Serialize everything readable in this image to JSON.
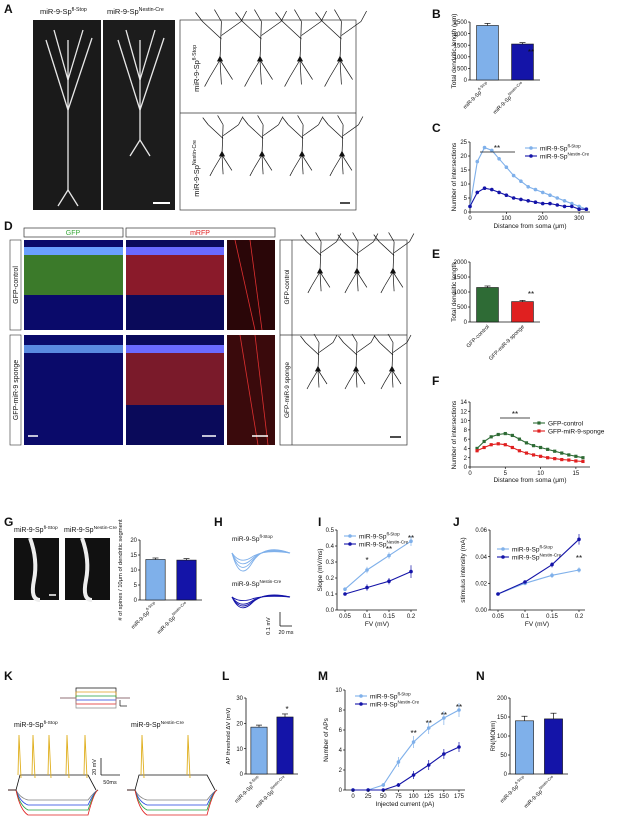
{
  "panels": {
    "A": {
      "letter": "A",
      "col1": "miR-9-Sp",
      "col1_sup": "fl-Stop",
      "col2": "miR-9-Sp",
      "col2_sup": "Nestin-Cre",
      "row1": "miR-9-Sp",
      "row1_sup": "fl-Stop",
      "row2": "miR-9-Sp",
      "row2_sup": "Nestin-Cre"
    },
    "B": {
      "letter": "B",
      "ylabel": "Total dendritic length (μm)",
      "ticks": [
        "0",
        "500",
        "1000",
        "1500",
        "2000",
        "2500"
      ],
      "star": "**",
      "categories": [
        "miR-9-Sp",
        "miR-9-Sp"
      ],
      "cat_sups": [
        "fl-Stop",
        "Nestin-Cre"
      ]
    },
    "C": {
      "letter": "C",
      "ylabel": "Number of intersections",
      "xlabel": "Distance from soma (μm)",
      "yticks": [
        "0",
        "5",
        "10",
        "15",
        "20",
        "25"
      ],
      "xticks": [
        "0",
        "100",
        "200",
        "300"
      ],
      "star": "**",
      "legend": [
        "miR-9-Sp",
        "miR-9-Sp"
      ],
      "legend_sups": [
        "fl-Stop",
        "Nestin-Cre"
      ]
    },
    "D": {
      "letter": "D",
      "gfp": "GFP",
      "mrfp": "mRFP",
      "row1": "GFP-control",
      "row2": "GFP-miR-9 sponge"
    },
    "E": {
      "letter": "E",
      "ylabel": "Total dendritic length",
      "ticks": [
        "0",
        "500",
        "1000",
        "1500",
        "2000"
      ],
      "star": "**",
      "categories": [
        "GFP-control",
        "GFP-miR-9 sponge"
      ]
    },
    "F": {
      "letter": "F",
      "ylabel": "Number of intersections",
      "xlabel": "Distance from soma (μm)",
      "yticks": [
        "0",
        "2",
        "4",
        "6",
        "8",
        "10",
        "12",
        "14"
      ],
      "xticks": [
        "0",
        "5",
        "10",
        "15"
      ],
      "star": "**",
      "legend": [
        "GFP-control",
        "GFP-miR-9-sponge"
      ]
    },
    "G": {
      "letter": "G",
      "col1": "miR-9-Sp",
      "col1_sup": "fl-Stop",
      "col2": "miR-9-Sp",
      "col2_sup": "Nestin-Cre",
      "ylabel": "# of spines / 10μm of dendritic segment",
      "ticks": [
        "0",
        "5",
        "10",
        "15",
        "20"
      ],
      "categories": [
        "miR-9-Sp",
        "miR-9-Sp"
      ],
      "cat_sups": [
        "fl-Stop",
        "Nestin-Cre"
      ]
    },
    "H": {
      "letter": "H",
      "top": "miR-9-Sp",
      "top_sup": "fl-Stop",
      "bottom": "miR-9-Sp",
      "bottom_sup": "Nestin-Cre",
      "scale_y": "0.1 mV",
      "scale_x": "20 ms"
    },
    "I": {
      "letter": "I",
      "ylabel": "Slope (mV/ms)",
      "xlabel": "FV (mV)",
      "yticks": [
        "0.0",
        "0.1",
        "0.2",
        "0.3",
        "0.4",
        "0.5"
      ],
      "xticks": [
        "0.05",
        "0.1",
        "0.15",
        "0.2"
      ],
      "legend": [
        "miR-9-Sp",
        "miR-9-Sp"
      ],
      "legend_sups": [
        "fl-Stop",
        "Nestin-Cre"
      ],
      "stars": [
        "*",
        "**",
        "**"
      ]
    },
    "J": {
      "letter": "J",
      "ylabel": "stimulus intensity (mA)",
      "xlabel": "FV (mV)",
      "yticks": [
        "0.00",
        "0.02",
        "0.04",
        "0.06"
      ],
      "xticks": [
        "0.05",
        "0.1",
        "0.15",
        "0.2"
      ],
      "legend": [
        "miR-9-Sp",
        "miR-9-Sp"
      ],
      "legend_sups": [
        "fl-Stop",
        "Nestin-Cre"
      ],
      "star": "**"
    },
    "K": {
      "letter": "K",
      "left": "miR-9-Sp",
      "left_sup": "fl-Stop",
      "right": "miR-9-Sp",
      "right_sup": "Nestin-Cre",
      "scale_y": "20 mV",
      "scale_x": "50ms"
    },
    "L": {
      "letter": "L",
      "ylabel": "AP threshold ΔV (mV)",
      "ticks": [
        "0",
        "10",
        "20",
        "30"
      ],
      "star": "*",
      "categories": [
        "miR-9-Sp",
        "miR-9-Sp"
      ],
      "cat_sups": [
        "fl-Stop",
        "Nestin-Cre"
      ]
    },
    "M": {
      "letter": "M",
      "ylabel": "Number of APs",
      "xlabel": "Injected current (pA)",
      "yticks": [
        "0",
        "2",
        "4",
        "6",
        "8",
        "10"
      ],
      "xticks": [
        "0",
        "25",
        "50",
        "75",
        "100",
        "125",
        "150",
        "175"
      ],
      "legend": [
        "miR-9-Sp",
        "miR-9-Sp"
      ],
      "legend_sups": [
        "fl-Stop",
        "Nestin-Cre"
      ],
      "stars": [
        "**",
        "**",
        "**",
        "**"
      ]
    },
    "N": {
      "letter": "N",
      "ylabel": "RN(MOhm)",
      "ticks": [
        "0",
        "50",
        "100",
        "150",
        "200"
      ],
      "categories": [
        "miR-9-Sp",
        "miR-9-Sp"
      ],
      "cat_sups": [
        "fl-Stop",
        "Nestin-Cre"
      ]
    }
  },
  "colors": {
    "light": "#7fb0ea",
    "dark": "#1414a8",
    "green": "#2e6b35",
    "red": "#e02020"
  },
  "chart_data": [
    {
      "panel": "B",
      "type": "bar",
      "categories": [
        "miR-9-Sp fl-Stop",
        "miR-9-Sp Nestin-Cre"
      ],
      "values": [
        2350,
        1550
      ],
      "errors": [
        90,
        60
      ],
      "ylim": [
        0,
        2500
      ]
    },
    {
      "panel": "C",
      "type": "line",
      "x": [
        0,
        20,
        40,
        60,
        80,
        100,
        120,
        140,
        160,
        180,
        200,
        220,
        240,
        260,
        280,
        300,
        320
      ],
      "series": [
        {
          "name": "miR-9-Sp fl-Stop",
          "values": [
            2,
            18,
            23,
            22,
            19,
            16,
            13,
            11,
            9,
            8,
            7,
            6,
            5,
            4,
            3,
            2,
            1
          ]
        },
        {
          "name": "miR-9-Sp Nestin-Cre",
          "values": [
            2,
            7,
            8.5,
            8,
            7,
            6,
            5,
            4.5,
            4,
            3.5,
            3,
            3,
            2.5,
            2,
            2,
            1,
            1
          ]
        }
      ],
      "xlim": [
        0,
        330
      ],
      "ylim": [
        0,
        25
      ]
    },
    {
      "panel": "E",
      "type": "bar",
      "categories": [
        "GFP-control",
        "GFP-miR-9 sponge"
      ],
      "values": [
        1150,
        680
      ],
      "errors": [
        50,
        40
      ],
      "ylim": [
        0,
        2000
      ]
    },
    {
      "panel": "F",
      "type": "line",
      "x": [
        1,
        2,
        3,
        4,
        5,
        6,
        7,
        8,
        9,
        10,
        11,
        12,
        13,
        14,
        15,
        16
      ],
      "series": [
        {
          "name": "GFP-control",
          "values": [
            4,
            5.5,
            6.5,
            7,
            7.2,
            6.8,
            6,
            5.2,
            4.6,
            4.2,
            3.8,
            3.4,
            3,
            2.6,
            2.3,
            2
          ]
        },
        {
          "name": "GFP-miR-9-sponge",
          "values": [
            3.5,
            4.2,
            4.8,
            5,
            4.8,
            4.2,
            3.5,
            3,
            2.6,
            2.3,
            2,
            1.8,
            1.6,
            1.5,
            1.3,
            1.2
          ]
        }
      ],
      "xlim": [
        0,
        17
      ],
      "ylim": [
        0,
        14
      ]
    },
    {
      "panel": "G",
      "type": "bar",
      "categories": [
        "miR-9-Sp fl-Stop",
        "miR-9-Sp Nestin-Cre"
      ],
      "values": [
        13.5,
        13.3
      ],
      "errors": [
        0.5,
        0.5
      ],
      "ylim": [
        0,
        20
      ]
    },
    {
      "panel": "I",
      "type": "line",
      "x": [
        0.05,
        0.1,
        0.15,
        0.2
      ],
      "series": [
        {
          "name": "miR-9-Sp fl-Stop",
          "values": [
            0.13,
            0.25,
            0.34,
            0.43
          ],
          "errors": [
            0.01,
            0.02,
            0.02,
            0.03
          ]
        },
        {
          "name": "miR-9-Sp Nestin-Cre",
          "values": [
            0.1,
            0.14,
            0.18,
            0.24
          ],
          "errors": [
            0.01,
            0.02,
            0.02,
            0.04
          ]
        }
      ],
      "ylim": [
        0,
        0.5
      ]
    },
    {
      "panel": "J",
      "type": "line",
      "x": [
        0.05,
        0.1,
        0.15,
        0.2
      ],
      "series": [
        {
          "name": "miR-9-Sp fl-Stop",
          "values": [
            0.012,
            0.02,
            0.026,
            0.03
          ],
          "errors": [
            0.001,
            0.001,
            0.002,
            0.002
          ]
        },
        {
          "name": "miR-9-Sp Nestin-Cre",
          "values": [
            0.012,
            0.021,
            0.034,
            0.053
          ],
          "errors": [
            0.001,
            0.001,
            0.002,
            0.004
          ]
        }
      ],
      "ylim": [
        0,
        0.06
      ]
    },
    {
      "panel": "L",
      "type": "bar",
      "categories": [
        "miR-9-Sp fl-Stop",
        "miR-9-Sp Nestin-Cre"
      ],
      "values": [
        18.5,
        22.5
      ],
      "errors": [
        0.8,
        1.2
      ],
      "ylim": [
        0,
        30
      ]
    },
    {
      "panel": "M",
      "type": "line",
      "x": [
        0,
        25,
        50,
        75,
        100,
        125,
        150,
        175
      ],
      "series": [
        {
          "name": "miR-9-Sp fl-Stop",
          "values": [
            0,
            0,
            0.5,
            2.8,
            4.8,
            6.2,
            7.2,
            8
          ],
          "errors": [
            0,
            0,
            0.2,
            0.5,
            0.6,
            0.6,
            0.7,
            0.7
          ]
        },
        {
          "name": "miR-9-Sp Nestin-Cre",
          "values": [
            0,
            0,
            0,
            0.5,
            1.5,
            2.5,
            3.6,
            4.3
          ],
          "errors": [
            0,
            0,
            0,
            0.2,
            0.4,
            0.5,
            0.5,
            0.5
          ]
        }
      ],
      "ylim": [
        0,
        10
      ]
    },
    {
      "panel": "N",
      "type": "bar",
      "categories": [
        "miR-9-Sp fl-Stop",
        "miR-9-Sp Nestin-Cre"
      ],
      "values": [
        140,
        145
      ],
      "errors": [
        12,
        15
      ],
      "ylim": [
        0,
        200
      ]
    }
  ]
}
